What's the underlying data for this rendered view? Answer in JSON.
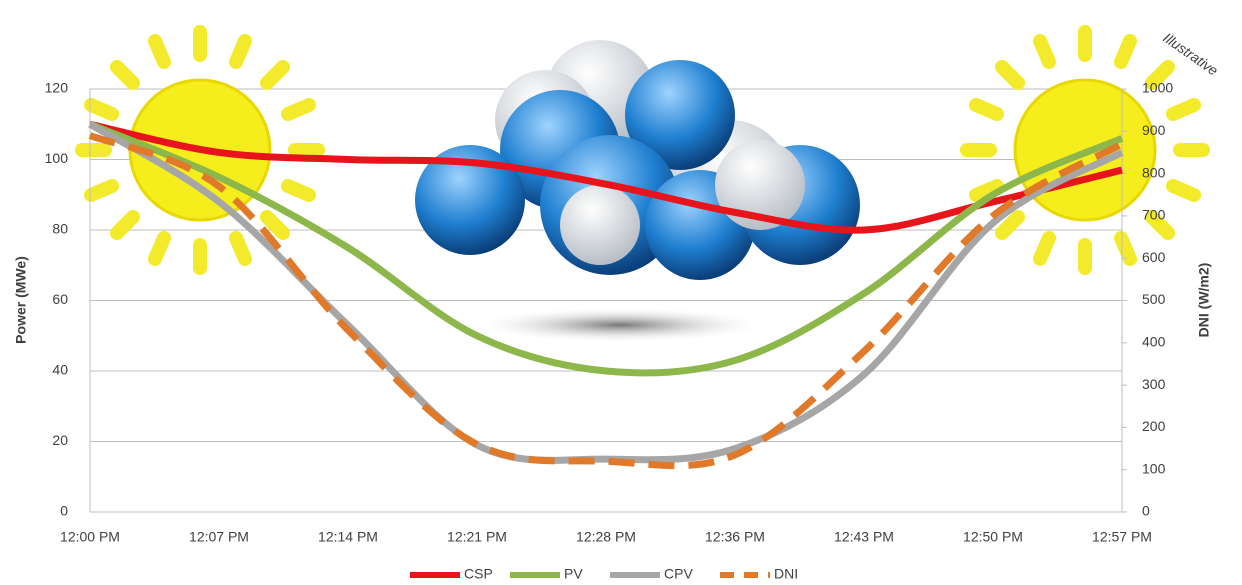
{
  "chart_data": {
    "type": "line",
    "annotation": "Illustrative",
    "y_label": "Power (MWe)",
    "y2_label": "DNI (W/m2)",
    "categories": [
      "12:00 PM",
      "12:07 PM",
      "12:14 PM",
      "12:21 PM",
      "12:28 PM",
      "12:36 PM",
      "12:43 PM",
      "12:50 PM",
      "12:57 PM"
    ],
    "ylim": [
      0,
      120
    ],
    "yticks": [
      0,
      20,
      40,
      60,
      80,
      100,
      120
    ],
    "y2lim": [
      0,
      1000
    ],
    "y2ticks": [
      0,
      100,
      200,
      300,
      400,
      500,
      600,
      700,
      800,
      900,
      1000
    ],
    "grid": true,
    "legend": "bottom",
    "series": [
      {
        "name": "CSP",
        "color": "#e8141c",
        "values": [
          110,
          102,
          100,
          99,
          93,
          85,
          80,
          88,
          97
        ]
      },
      {
        "name": "PV",
        "color": "#8db74a",
        "values": [
          110,
          95,
          75,
          50,
          40,
          43,
          62,
          90,
          106
        ]
      },
      {
        "name": "CPV",
        "color": "#a6a6a6",
        "values": [
          110,
          88,
          53,
          19,
          15,
          18,
          39,
          82,
          102
        ]
      },
      {
        "name": "DNI",
        "color": "#e07a2a",
        "axis": "y2",
        "dashed": true,
        "values": [
          890,
          770,
          430,
          160,
          120,
          135,
          380,
          700,
          870
        ]
      }
    ]
  }
}
